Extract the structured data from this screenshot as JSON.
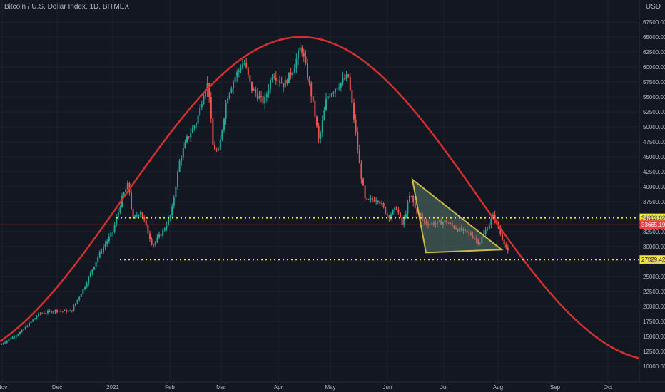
{
  "header": {
    "title": "Bitcoin / U.S. Dollar Index, 1D, BITMEX",
    "currency": "USD"
  },
  "chart_data": {
    "type": "candlestick",
    "title": "Bitcoin / U.S. Dollar Index, 1D, BITMEX",
    "ylim": [
      9500,
      70000
    ],
    "ytick_labels": [
      "67500.00",
      "65000.00",
      "62500.00",
      "60000.00",
      "57500.00",
      "55000.00",
      "52500.00",
      "50000.00",
      "47500.00",
      "45000.00",
      "42500.00",
      "40000.00",
      "37500.00",
      "35000.00",
      "32500.00",
      "30000.00",
      "27500.00",
      "25000.00",
      "22500.00",
      "20000.00",
      "17500.00",
      "15000.00",
      "12500.00",
      "10000.00"
    ],
    "ytick_values": [
      67500,
      65000,
      62500,
      60000,
      57500,
      55000,
      52500,
      50000,
      47500,
      45000,
      42500,
      40000,
      37500,
      35000,
      32500,
      30000,
      27500,
      25000,
      22500,
      20000,
      17500,
      15000,
      12500,
      10000
    ],
    "xtick_labels": [
      "Nov",
      "Dec",
      "2021",
      "Feb",
      "Mar",
      "Apr",
      "May",
      "Jun",
      "Jul",
      "Aug",
      "Sep",
      "Oct"
    ],
    "price_levels": [
      {
        "label": "34803.02",
        "value": 34803.02,
        "color": "#f3e93a"
      },
      {
        "label": "27829.42",
        "value": 27829.42,
        "color": "#f3e93a"
      }
    ],
    "last_price": {
      "label": "33665.19",
      "value": 33665.19,
      "color": "#f23645"
    },
    "colors": {
      "up": "#26a69a",
      "down": "#ef5350",
      "curve": "#d32f2f",
      "triangle": "#c9b84a",
      "background": "#131722"
    },
    "curve_peak": {
      "date_label": "Apr",
      "value": 65000
    },
    "triangle": {
      "top": 41200,
      "apex": 29500,
      "bottom": 29000
    }
  }
}
